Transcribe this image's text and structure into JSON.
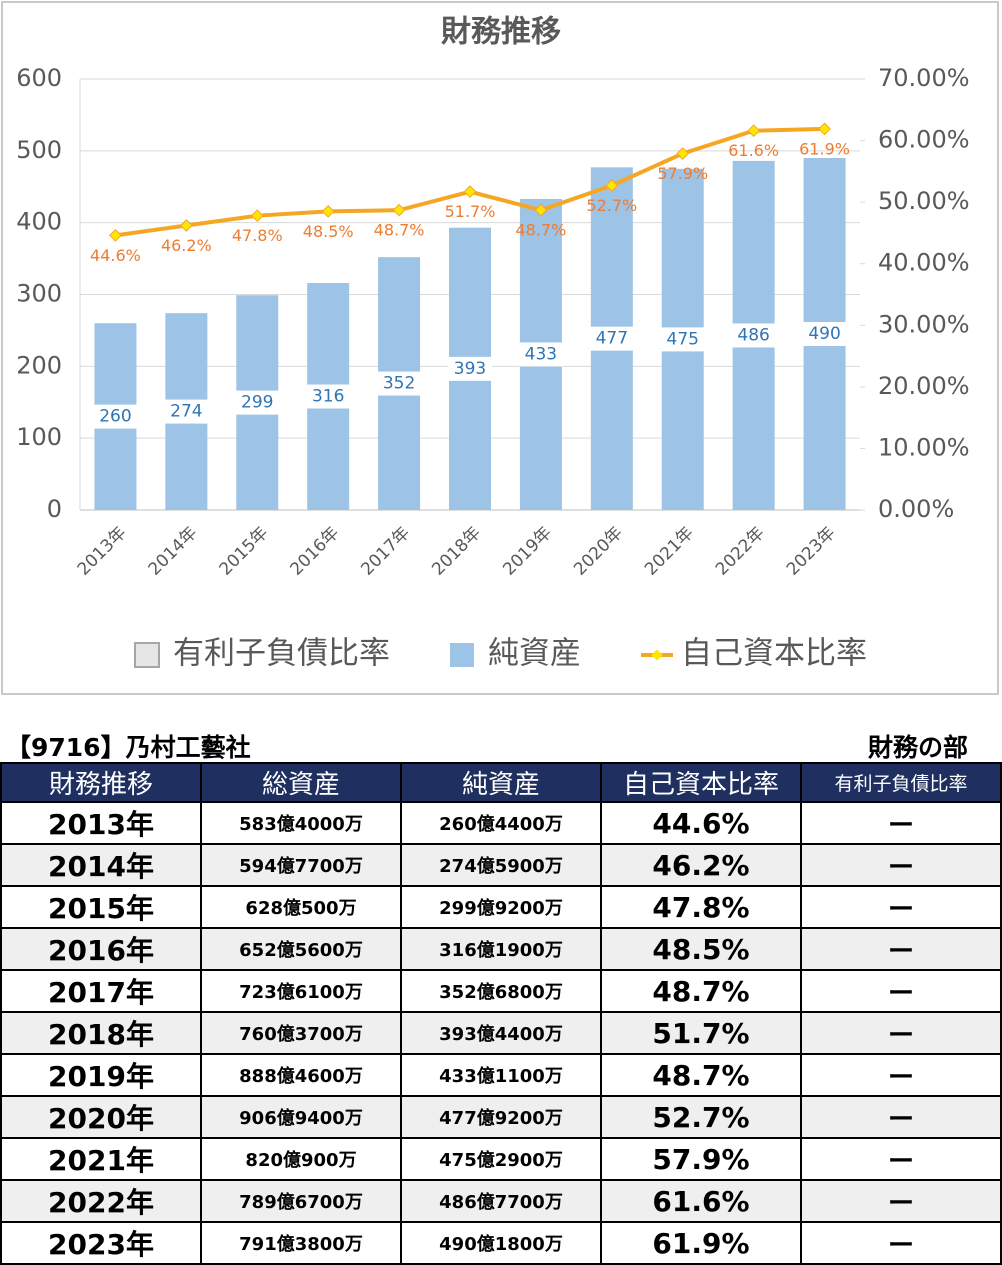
{
  "chart_data": {
    "type": "bar_line",
    "title": "財務推移",
    "categories": [
      "2013年",
      "2014年",
      "2015年",
      "2016年",
      "2017年",
      "2018年",
      "2019年",
      "2020年",
      "2021年",
      "2022年",
      "2023年"
    ],
    "series": [
      {
        "name": "有利子負債比率",
        "color": "#e7e6e6",
        "values": [
          null,
          null,
          null,
          null,
          null,
          null,
          null,
          null,
          null,
          null,
          null
        ]
      },
      {
        "name": "純資産",
        "color": "#9dc3e6",
        "values": [
          260,
          274,
          299,
          316,
          352,
          393,
          433,
          477,
          475,
          486,
          490
        ]
      },
      {
        "name": "自己資本比率",
        "color": "#f5a623",
        "axis": "y2",
        "values": [
          44.6,
          46.2,
          47.8,
          48.5,
          48.7,
          51.7,
          48.7,
          52.7,
          57.9,
          61.6,
          61.9
        ],
        "value_labels": [
          "44.6%",
          "46.2%",
          "47.8%",
          "48.5%",
          "48.7%",
          "51.7%",
          "48.7%",
          "52.7%",
          "57.9%",
          "61.6%",
          "61.9%"
        ]
      }
    ],
    "ylim": [
      0,
      600
    ],
    "yticks": [
      0,
      100,
      200,
      300,
      400,
      500,
      600
    ],
    "y2lim": [
      0,
      70
    ],
    "y2ticks": [
      {
        "value": 0,
        "label": "0.00%"
      },
      {
        "value": 10,
        "label": "10.00%"
      },
      {
        "value": 20,
        "label": "20.00%"
      },
      {
        "value": 30,
        "label": "30.00%"
      },
      {
        "value": 40,
        "label": "40.00%"
      },
      {
        "value": 50,
        "label": "50.00%"
      },
      {
        "value": 60,
        "label": "60.00%"
      },
      {
        "value": 70,
        "label": "70.00%"
      }
    ],
    "grid": true,
    "legend": "bottom"
  },
  "table": {
    "title": "【9716】乃村工藝社",
    "section": "財務の部",
    "header": [
      "財務推移",
      "総資産",
      "純資産",
      "自己資本比率",
      "有利子負債比率"
    ],
    "rows": [
      [
        "2013年",
        "583億4000万",
        "260億4400万",
        "44.6%",
        "ー"
      ],
      [
        "2014年",
        "594億7700万",
        "274億5900万",
        "46.2%",
        "ー"
      ],
      [
        "2015年",
        "628億500万",
        "299億9200万",
        "47.8%",
        "ー"
      ],
      [
        "2016年",
        "652億5600万",
        "316億1900万",
        "48.5%",
        "ー"
      ],
      [
        "2017年",
        "723億6100万",
        "352億6800万",
        "48.7%",
        "ー"
      ],
      [
        "2018年",
        "760億3700万",
        "393億4400万",
        "51.7%",
        "ー"
      ],
      [
        "2019年",
        "888億4600万",
        "433億1100万",
        "48.7%",
        "ー"
      ],
      [
        "2020年",
        "906億9400万",
        "477億9200万",
        "52.7%",
        "ー"
      ],
      [
        "2021年",
        "820億900万",
        "475億2900万",
        "57.9%",
        "ー"
      ],
      [
        "2022年",
        "789億6700万",
        "486億7700万",
        "61.6%",
        "ー"
      ],
      [
        "2023年",
        "791億3800万",
        "490億1800万",
        "61.9%",
        "ー"
      ]
    ]
  }
}
